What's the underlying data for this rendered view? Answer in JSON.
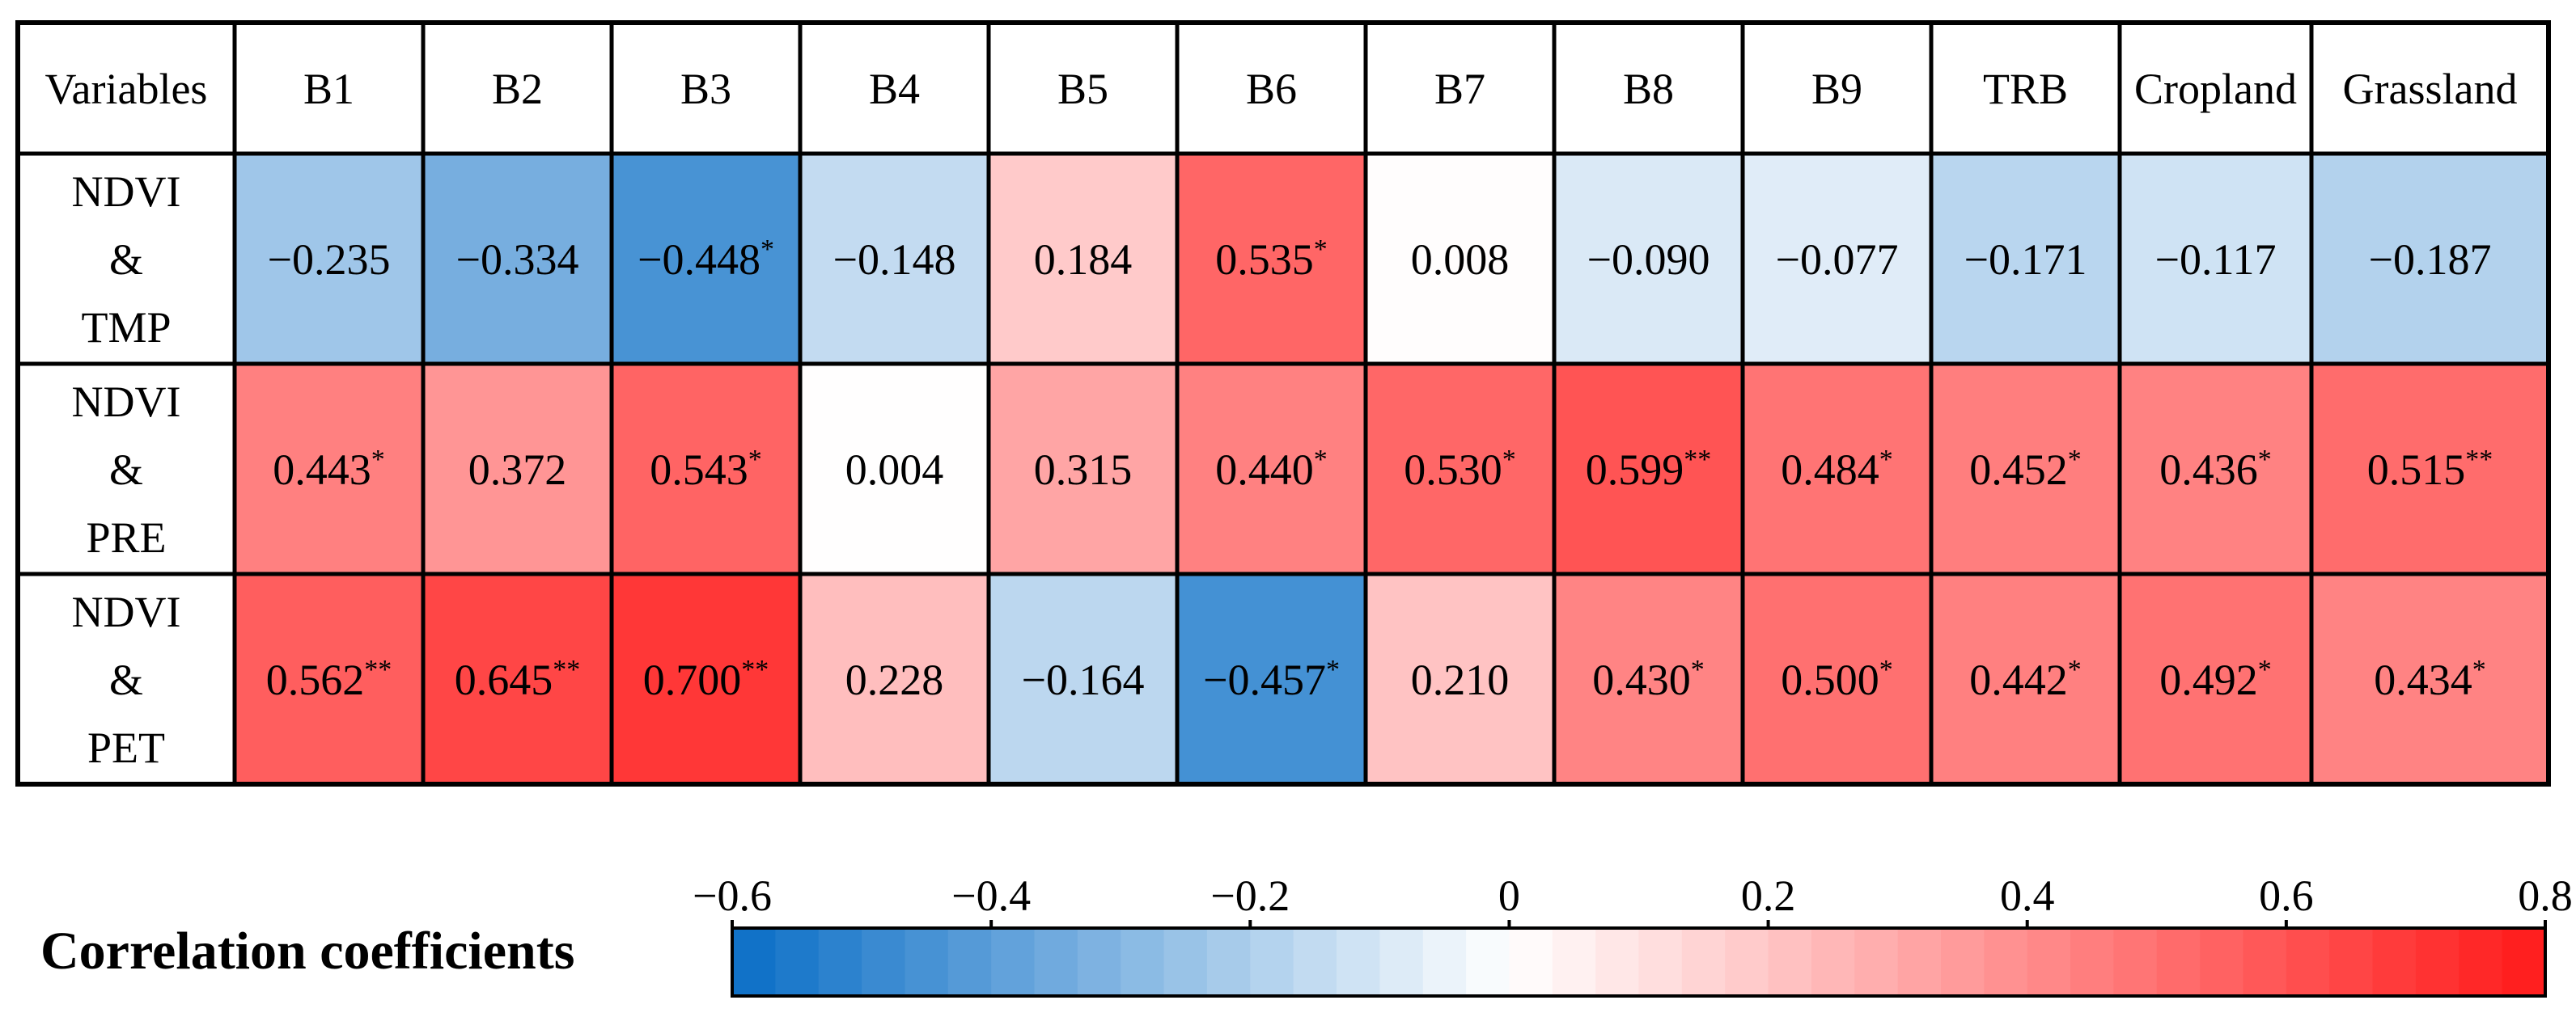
{
  "chart_data": {
    "type": "heatmap",
    "corner_label": "Variables",
    "columns": [
      "B1",
      "B2",
      "B3",
      "B4",
      "B5",
      "B6",
      "B7",
      "B8",
      "B9",
      "TRB",
      "Cropland",
      "Grassland"
    ],
    "rows": [
      {
        "label_lines": [
          "NDVI",
          "&",
          "TMP"
        ],
        "values": [
          -0.235,
          -0.334,
          -0.448,
          -0.148,
          0.184,
          0.535,
          0.008,
          -0.09,
          -0.077,
          -0.171,
          -0.117,
          -0.187
        ],
        "labels": [
          "−0.235",
          "−0.334",
          "−0.448",
          "−0.148",
          "0.184",
          "0.535",
          "0.008",
          "−0.090",
          "−0.077",
          "−0.171",
          "−0.117",
          "−0.187"
        ],
        "significance": [
          "",
          "",
          "*",
          "",
          "",
          "*",
          "",
          "",
          "",
          "",
          "",
          ""
        ]
      },
      {
        "label_lines": [
          "NDVI",
          "&",
          "PRE"
        ],
        "values": [
          0.443,
          0.372,
          0.543,
          0.004,
          0.315,
          0.44,
          0.53,
          0.599,
          0.484,
          0.452,
          0.436,
          0.515
        ],
        "labels": [
          "0.443",
          "0.372",
          "0.543",
          "0.004",
          "0.315",
          "0.440",
          "0.530",
          "0.599",
          "0.484",
          "0.452",
          "0.436",
          "0.515"
        ],
        "significance": [
          "*",
          "",
          "*",
          "",
          "",
          "*",
          "*",
          "**",
          "*",
          "*",
          "*",
          "**"
        ]
      },
      {
        "label_lines": [
          "NDVI",
          "&",
          "PET"
        ],
        "values": [
          0.562,
          0.645,
          0.7,
          0.228,
          -0.164,
          -0.457,
          0.21,
          0.43,
          0.5,
          0.442,
          0.492,
          0.434
        ],
        "labels": [
          "0.562",
          "0.645",
          "0.700",
          "0.228",
          "−0.164",
          "−0.457",
          "0.210",
          "0.430",
          "0.500",
          "0.442",
          "0.492",
          "0.434"
        ],
        "significance": [
          "**",
          "**",
          "**",
          "",
          "",
          "*",
          "",
          "*",
          "*",
          "*",
          "*",
          "*"
        ]
      }
    ],
    "colorbar": {
      "title": "Correlation coefficients",
      "range": [
        -0.6,
        0.8
      ],
      "ticks": [
        -0.6,
        -0.4,
        -0.2,
        0,
        0.2,
        0.4,
        0.6,
        0.8
      ],
      "tick_labels": [
        "−0.6",
        "−0.4",
        "−0.2",
        "0",
        "0.2",
        "0.4",
        "0.6",
        "0.8"
      ],
      "segments": 42,
      "colors": {
        "negative_end": "#0a6ec6",
        "zero": "#ffffff",
        "positive_end": "#ff1a1a"
      }
    }
  }
}
